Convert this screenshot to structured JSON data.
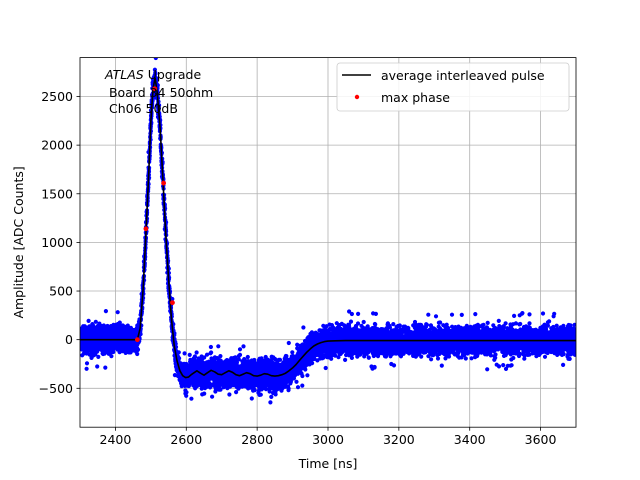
{
  "chart_data": {
    "type": "scatter",
    "title": "",
    "xlabel": "Time [ns]",
    "ylabel": "Amplitude [ADC Counts]",
    "xlim": [
      2300,
      3700
    ],
    "ylim": [
      -900,
      2900
    ],
    "xticks": [
      2400,
      2600,
      2800,
      3000,
      3200,
      3400,
      3600
    ],
    "yticks": [
      -500,
      0,
      500,
      1000,
      1500,
      2000,
      2500
    ],
    "grid": true,
    "legend_position": "top-right",
    "annotation": {
      "line1_italic": "ATLAS",
      "line1_rest": " Upgrade",
      "line2": " Board 34 50ohm",
      "line3": " Ch06 50dB"
    },
    "colors": {
      "scatter": "#0000ff",
      "average_line": "#000000",
      "max_phase": "#ff0000",
      "grid": "#b0b0b0"
    },
    "series": [
      {
        "name": "average interleaved pulse",
        "kind": "line",
        "x": [
          2300,
          2440,
          2462,
          2470,
          2478,
          2486,
          2494,
          2500,
          2506,
          2512,
          2518,
          2526,
          2534,
          2542,
          2550,
          2558,
          2566,
          2574,
          2582,
          2590,
          2598,
          2606,
          2614,
          2622,
          2630,
          2640,
          2650,
          2660,
          2670,
          2680,
          2690,
          2700,
          2710,
          2720,
          2730,
          2740,
          2750,
          2760,
          2770,
          2780,
          2790,
          2800,
          2810,
          2820,
          2830,
          2840,
          2850,
          2860,
          2870,
          2880,
          2890,
          2900,
          2910,
          2920,
          2930,
          2940,
          2950,
          2960,
          2970,
          2980,
          2990,
          3000,
          3020,
          3050,
          3100,
          3200,
          3400,
          3700
        ],
        "y": [
          0,
          0,
          0,
          120,
          520,
          1080,
          1700,
          2250,
          2580,
          2690,
          2540,
          2180,
          1650,
          1100,
          620,
          220,
          -60,
          -220,
          -320,
          -370,
          -390,
          -385,
          -360,
          -340,
          -320,
          -345,
          -365,
          -340,
          -315,
          -330,
          -355,
          -360,
          -340,
          -320,
          -335,
          -360,
          -370,
          -355,
          -340,
          -350,
          -370,
          -375,
          -365,
          -350,
          -355,
          -370,
          -375,
          -370,
          -360,
          -345,
          -320,
          -290,
          -255,
          -210,
          -170,
          -130,
          -95,
          -65,
          -45,
          -30,
          -20,
          -15,
          -12,
          -10,
          -10,
          -10,
          -10,
          -10
        ]
      },
      {
        "name": "max phase",
        "kind": "points",
        "x": [
          2462,
          2486,
          2511,
          2536,
          2561
        ],
        "y": [
          0,
          1140,
          2580,
          1610,
          380
        ]
      }
    ]
  }
}
